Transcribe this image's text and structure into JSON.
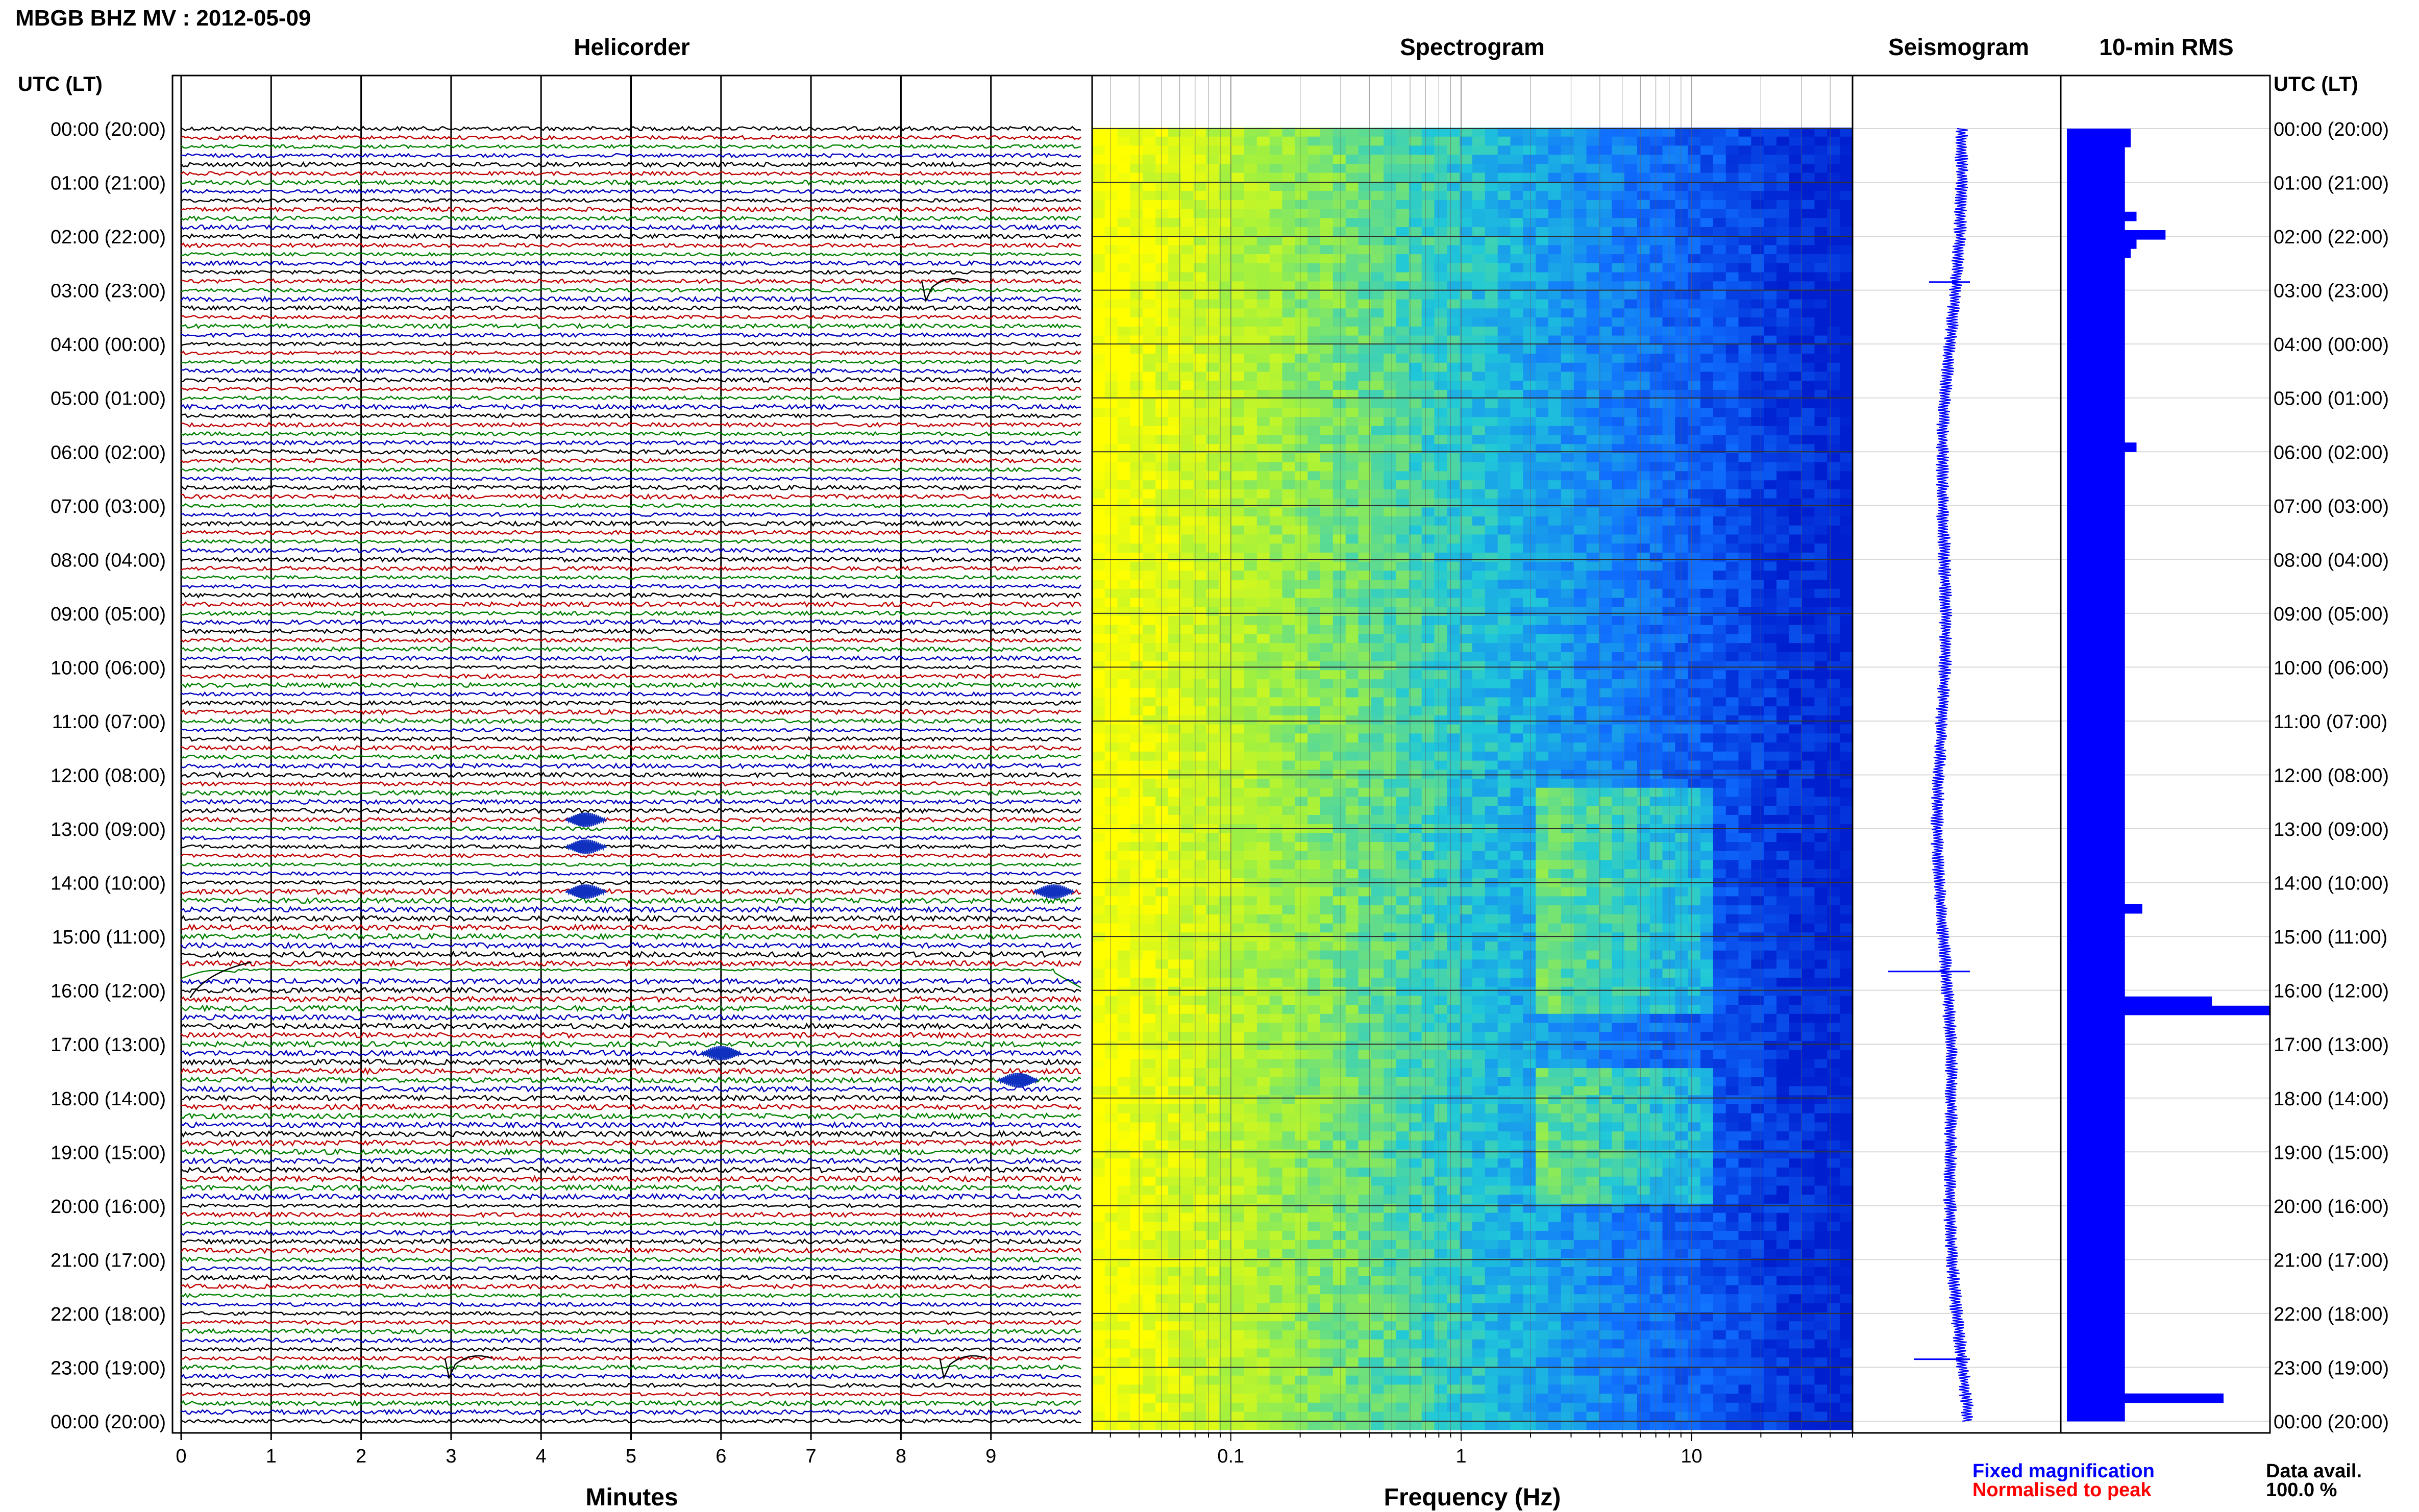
{
  "page_title": "MBGB BHZ MV : 2012-05-09",
  "chart_data": [
    {
      "type": "line",
      "title": "Helicorder",
      "xlabel": "Minutes",
      "xlim": [
        0,
        10
      ],
      "x_ticks": [
        "0",
        "1",
        "2",
        "3",
        "4",
        "5",
        "6",
        "7",
        "8",
        "9"
      ],
      "rows_per_hour": 6,
      "row_color_cycle": [
        "#000000",
        "#c00000",
        "#008000",
        "#0000c0"
      ],
      "events": [
        {
          "time_utc": "02:50",
          "minute": 8.3,
          "kind": "dip"
        },
        {
          "time_utc": "12:50",
          "minute": 4.5,
          "kind": "burst"
        },
        {
          "time_utc": "13:20",
          "minute": 4.5,
          "kind": "burst"
        },
        {
          "time_utc": "14:10",
          "minute": 4.5,
          "kind": "burst"
        },
        {
          "time_utc": "14:10",
          "minute": 9.7,
          "kind": "burst"
        },
        {
          "time_utc": "15:40",
          "minute": 0.1,
          "kind": "long-period swell"
        },
        {
          "time_utc": "17:10",
          "minute": 6.0,
          "kind": "burst"
        },
        {
          "time_utc": "17:40",
          "minute": 9.3,
          "kind": "burst"
        },
        {
          "time_utc": "22:50",
          "minute": 3.0,
          "kind": "dip"
        },
        {
          "time_utc": "22:50",
          "minute": 8.5,
          "kind": "dip"
        }
      ]
    },
    {
      "type": "heatmap",
      "title": "Spectrogram",
      "xlabel": "Frequency (Hz)",
      "xscale": "log",
      "xlim": [
        0.025,
        50
      ],
      "x_ticks": [
        "0.1",
        "1",
        "10"
      ],
      "colormap": [
        "#ffff00",
        "#a0f040",
        "#20c8d8",
        "#1070ff",
        "#0020d0"
      ]
    },
    {
      "type": "line",
      "title": "Seismogram",
      "color": "#0000ff"
    },
    {
      "type": "bar",
      "title": "10-min RMS",
      "orientation": "horizontal",
      "color": "#0000ff",
      "values": [
        1.1,
        1.1,
        1.0,
        1.0,
        1.0,
        1.0,
        1.0,
        1.0,
        1.0,
        1.2,
        1.0,
        1.7,
        1.2,
        1.1,
        1.0,
        1.0,
        1.0,
        1.0,
        1.0,
        1.0,
        1.0,
        1.0,
        1.0,
        1.0,
        1.0,
        1.0,
        1.0,
        1.0,
        1.0,
        1.0,
        1.0,
        1.0,
        1.0,
        1.0,
        1.2,
        1.0,
        1.0,
        1.0,
        1.0,
        1.0,
        1.0,
        1.0,
        1.0,
        1.0,
        1.0,
        1.0,
        1.0,
        1.0,
        1.0,
        1.0,
        1.0,
        1.0,
        1.0,
        1.0,
        1.0,
        1.0,
        1.0,
        1.0,
        1.0,
        1.0,
        1.0,
        1.0,
        1.0,
        1.0,
        1.0,
        1.0,
        1.0,
        1.0,
        1.0,
        1.0,
        1.0,
        1.0,
        1.0,
        1.0,
        1.0,
        1.0,
        1.0,
        1.0,
        1.0,
        1.0,
        1.0,
        1.0,
        1.0,
        1.0,
        1.3,
        1.0,
        1.0,
        1.0,
        1.0,
        1.0,
        1.0,
        1.0,
        1.0,
        1.0,
        2.5,
        3.5,
        1.0,
        1.0,
        1.0,
        1.0,
        1.0,
        1.0,
        1.0,
        1.0,
        1.0,
        1.0,
        1.0,
        1.0,
        1.0,
        1.0,
        1.0,
        1.0,
        1.0,
        1.0,
        1.0,
        1.0,
        1.0,
        1.0,
        1.0,
        1.0,
        1.0,
        1.0,
        1.0,
        1.0,
        1.0,
        1.0,
        1.0,
        1.0,
        1.0,
        1.0,
        1.0,
        1.0,
        1.0,
        1.0,
        1.0,
        1.0,
        1.0,
        2.7,
        1.0,
        1.0
      ]
    }
  ],
  "left_axis": {
    "header": "UTC (LT)",
    "labels": [
      "00:00 (20:00)",
      "01:00 (21:00)",
      "02:00 (22:00)",
      "03:00 (23:00)",
      "04:00 (00:00)",
      "05:00 (01:00)",
      "06:00 (02:00)",
      "07:00 (03:00)",
      "08:00 (04:00)",
      "09:00 (05:00)",
      "10:00 (06:00)",
      "11:00 (07:00)",
      "12:00 (08:00)",
      "13:00 (09:00)",
      "14:00 (10:00)",
      "15:00 (11:00)",
      "16:00 (12:00)",
      "17:00 (13:00)",
      "18:00 (14:00)",
      "19:00 (15:00)",
      "20:00 (16:00)",
      "21:00 (17:00)",
      "22:00 (18:00)",
      "23:00 (19:00)",
      "00:00 (20:00)"
    ]
  },
  "right_axis": {
    "header": "UTC (LT)",
    "labels": [
      "00:00 (20:00)",
      "01:00 (21:00)",
      "02:00 (22:00)",
      "03:00 (23:00)",
      "04:00 (00:00)",
      "05:00 (01:00)",
      "06:00 (02:00)",
      "07:00 (03:00)",
      "08:00 (04:00)",
      "09:00 (05:00)",
      "10:00 (06:00)",
      "11:00 (07:00)",
      "12:00 (08:00)",
      "13:00 (09:00)",
      "14:00 (10:00)",
      "15:00 (11:00)",
      "16:00 (12:00)",
      "17:00 (13:00)",
      "18:00 (14:00)",
      "19:00 (15:00)",
      "20:00 (16:00)",
      "21:00 (17:00)",
      "22:00 (18:00)",
      "23:00 (19:00)",
      "00:00 (20:00)"
    ]
  },
  "legend": {
    "fixed_label": "Fixed magnification",
    "fixed_color": "#0000ff",
    "norm_label": "Normalised to peak",
    "norm_color": "#ff0000"
  },
  "availability": {
    "label": "Data avail.",
    "value": "100.0 %"
  }
}
